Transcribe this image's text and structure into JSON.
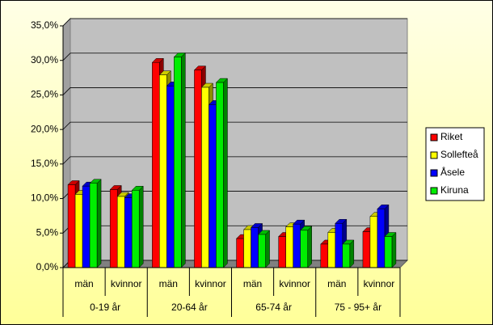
{
  "chart_data": {
    "type": "bar",
    "categories": [
      "män",
      "kvinnor",
      "män",
      "kvinnor",
      "män",
      "kvinnor",
      "män",
      "kvinnor"
    ],
    "groups": [
      "0-19 år",
      "20-64 år",
      "65-74 år",
      "75 - 95+ år"
    ],
    "series": [
      {
        "name": "Riket",
        "color": "#ff0000",
        "values": [
          12.0,
          11.3,
          29.7,
          28.6,
          4.2,
          4.5,
          3.4,
          5.2
        ]
      },
      {
        "name": "Sollefteå",
        "color": "#ffff00",
        "values": [
          10.6,
          10.3,
          27.9,
          26.1,
          5.5,
          5.9,
          5.1,
          7.4
        ]
      },
      {
        "name": "Åsele",
        "color": "#0000ff",
        "values": [
          11.8,
          10.1,
          26.3,
          23.6,
          5.8,
          6.3,
          6.4,
          8.5
        ]
      },
      {
        "name": "Kiruna",
        "color": "#00ee00",
        "values": [
          12.2,
          11.2,
          30.5,
          26.8,
          4.8,
          5.4,
          3.4,
          4.5
        ]
      }
    ],
    "ylim": [
      0,
      35
    ],
    "yticks": [
      {
        "value": 0,
        "label": "0,0%"
      },
      {
        "value": 5,
        "label": "5,0%"
      },
      {
        "value": 10,
        "label": "10,0%"
      },
      {
        "value": 15,
        "label": "15,0%"
      },
      {
        "value": 20,
        "label": "20,0%"
      },
      {
        "value": 25,
        "label": "25,0%"
      },
      {
        "value": 30,
        "label": "30,0%"
      },
      {
        "value": 35,
        "label": "35,0%"
      }
    ],
    "grid": true,
    "legend": "right"
  }
}
